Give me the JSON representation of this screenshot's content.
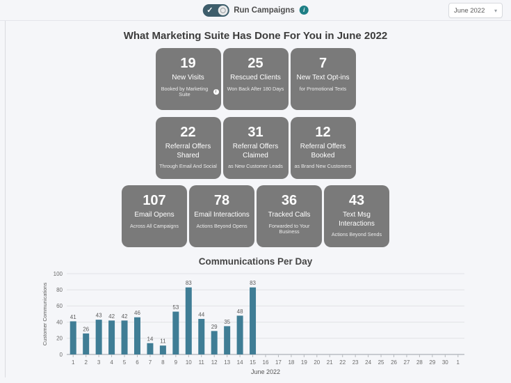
{
  "header": {
    "toggle_label": "Run Campaigns",
    "toggle_state": "on",
    "month_selector_value": "June 2022"
  },
  "page_title": "What Marketing Suite Has Done For You in June 2022",
  "stat_rows": [
    {
      "cards": [
        {
          "value": "19",
          "title": "New Visits",
          "subtitle": "Booked by Marketing Suite",
          "has_info_icon": true
        },
        {
          "value": "25",
          "title": "Rescued Clients",
          "subtitle": "Won Back After 180 Days"
        },
        {
          "value": "7",
          "title": "New Text Opt-ins",
          "subtitle": "for Promotional Texts"
        }
      ]
    },
    {
      "cards": [
        {
          "value": "22",
          "title": "Referral Offers Shared",
          "subtitle": "Through Email And Social"
        },
        {
          "value": "31",
          "title": "Referral Offers Claimed",
          "subtitle": "as New Customer Leads"
        },
        {
          "value": "12",
          "title": "Referral Offers Booked",
          "subtitle": "as Brand New Customers"
        }
      ]
    },
    {
      "cards": [
        {
          "value": "107",
          "title": "Email Opens",
          "subtitle": "Across All Campaigns"
        },
        {
          "value": "78",
          "title": "Email Interactions",
          "subtitle": "Actions Beyond Opens"
        },
        {
          "value": "36",
          "title": "Tracked Calls",
          "subtitle": "Forwarded to Your Business"
        },
        {
          "value": "43",
          "title": "Text Msg Interactions",
          "subtitle": "Actions Beyond Sends"
        }
      ]
    }
  ],
  "chart_data": {
    "type": "bar",
    "title": "Communications Per Day",
    "xlabel": "June 2022",
    "ylabel": "Customer Communications",
    "ylim": [
      0,
      100
    ],
    "yticks": [
      0,
      20,
      40,
      60,
      80,
      100
    ],
    "grid": true,
    "legend": false,
    "categories": [
      "1",
      "2",
      "3",
      "4",
      "5",
      "6",
      "7",
      "8",
      "9",
      "10",
      "11",
      "12",
      "13",
      "14",
      "15",
      "16",
      "17",
      "18",
      "19",
      "20",
      "21",
      "22",
      "23",
      "24",
      "25",
      "26",
      "27",
      "28",
      "29",
      "30",
      "1"
    ],
    "values": [
      41,
      26,
      43,
      42,
      42,
      46,
      14,
      11,
      53,
      83,
      44,
      29,
      35,
      48,
      83,
      null,
      null,
      null,
      null,
      null,
      null,
      null,
      null,
      null,
      null,
      null,
      null,
      null,
      null,
      null,
      null
    ],
    "bar_color": "#3f7d95"
  },
  "colors": {
    "accent_teal": "#1e7f86",
    "card_gray": "#7a7a7a",
    "toggle": "#3d5d6b",
    "bar": "#3f7d95",
    "page_bg": "#f5f6f9"
  }
}
